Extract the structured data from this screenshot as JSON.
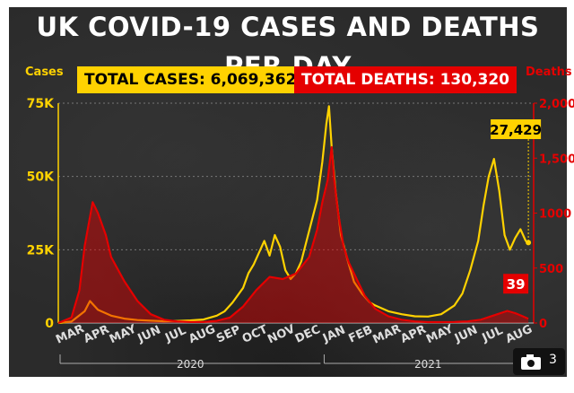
{
  "chart_data": {
    "type": "line",
    "title": "UK COVID-19 CASES AND DEATHS PER DAY",
    "y_left_label": "Cases",
    "y_right_label": "Deaths",
    "total_cases_label": "TOTAL CASES: 6,069,362",
    "total_deaths_label": "TOTAL DEATHS: 130,320",
    "left_ticks": [
      {
        "v": 0,
        "t": "0"
      },
      {
        "v": 25000,
        "t": "25K"
      },
      {
        "v": 50000,
        "t": "50K"
      },
      {
        "v": 75000,
        "t": "75K"
      }
    ],
    "right_ticks": [
      {
        "v": 0,
        "t": "0"
      },
      {
        "v": 500,
        "t": "500"
      },
      {
        "v": 1000,
        "t": "1000"
      },
      {
        "v": 1500,
        "t": "1,500"
      },
      {
        "v": 2000,
        "t": "2,000"
      }
    ],
    "ylim_left": [
      0,
      75000
    ],
    "ylim_right": [
      0,
      2000
    ],
    "grid": true,
    "months": [
      "MAR",
      "APR",
      "MAY",
      "JUN",
      "JUL",
      "AUG",
      "SEP",
      "OCT",
      "NOV",
      "DEC",
      "JAN",
      "FEB",
      "MAR",
      "APR",
      "MAY",
      "JUN",
      "JUL",
      "AUG"
    ],
    "years": [
      {
        "label": "2020",
        "from": 0,
        "to": 10
      },
      {
        "label": "2021",
        "from": 10,
        "to": 18
      }
    ],
    "annotations": {
      "cases_last": "27,429",
      "deaths_last": "39"
    },
    "series": [
      {
        "name": "Cases",
        "color": "#ffd200",
        "axis": "left",
        "points": [
          [
            0,
            0
          ],
          [
            0.5,
            500
          ],
          [
            1,
            4000
          ],
          [
            1.2,
            7500
          ],
          [
            1.5,
            4500
          ],
          [
            2,
            2500
          ],
          [
            2.5,
            1500
          ],
          [
            3,
            1000
          ],
          [
            3.5,
            800
          ],
          [
            4,
            600
          ],
          [
            4.5,
            700
          ],
          [
            5,
            900
          ],
          [
            5.5,
            1200
          ],
          [
            6,
            2500
          ],
          [
            6.3,
            4000
          ],
          [
            6.6,
            7000
          ],
          [
            7,
            12000
          ],
          [
            7.2,
            17000
          ],
          [
            7.4,
            20000
          ],
          [
            7.6,
            24000
          ],
          [
            7.8,
            28000
          ],
          [
            8,
            23000
          ],
          [
            8.2,
            30000
          ],
          [
            8.4,
            26000
          ],
          [
            8.6,
            18000
          ],
          [
            8.8,
            15000
          ],
          [
            9,
            17000
          ],
          [
            9.2,
            21000
          ],
          [
            9.4,
            28000
          ],
          [
            9.6,
            35000
          ],
          [
            9.8,
            42000
          ],
          [
            10,
            55000
          ],
          [
            10.15,
            68000
          ],
          [
            10.25,
            74000
          ],
          [
            10.35,
            60000
          ],
          [
            10.5,
            45000
          ],
          [
            10.7,
            30000
          ],
          [
            11,
            20000
          ],
          [
            11.2,
            14000
          ],
          [
            11.5,
            10000
          ],
          [
            11.8,
            7000
          ],
          [
            12,
            6000
          ],
          [
            12.5,
            4000
          ],
          [
            13,
            3000
          ],
          [
            13.5,
            2300
          ],
          [
            14,
            2200
          ],
          [
            14.5,
            3000
          ],
          [
            15,
            6000
          ],
          [
            15.3,
            10000
          ],
          [
            15.6,
            18000
          ],
          [
            15.9,
            28000
          ],
          [
            16.1,
            40000
          ],
          [
            16.3,
            50000
          ],
          [
            16.5,
            56000
          ],
          [
            16.7,
            45000
          ],
          [
            16.9,
            30000
          ],
          [
            17.1,
            25000
          ],
          [
            17.3,
            29000
          ],
          [
            17.5,
            32000
          ],
          [
            17.7,
            28000
          ],
          [
            17.8,
            27429
          ]
        ]
      },
      {
        "name": "Deaths",
        "color": "#e50000",
        "axis": "right",
        "points": [
          [
            0,
            0
          ],
          [
            0.5,
            50
          ],
          [
            0.8,
            300
          ],
          [
            1,
            700
          ],
          [
            1.3,
            1100
          ],
          [
            1.5,
            1000
          ],
          [
            1.8,
            800
          ],
          [
            2,
            600
          ],
          [
            2.5,
            380
          ],
          [
            3,
            200
          ],
          [
            3.5,
            80
          ],
          [
            4,
            30
          ],
          [
            4.5,
            15
          ],
          [
            5,
            10
          ],
          [
            5.5,
            10
          ],
          [
            6,
            20
          ],
          [
            6.5,
            50
          ],
          [
            7,
            150
          ],
          [
            7.5,
            300
          ],
          [
            8,
            420
          ],
          [
            8.5,
            400
          ],
          [
            9,
            450
          ],
          [
            9.5,
            600
          ],
          [
            9.8,
            850
          ],
          [
            10,
            1100
          ],
          [
            10.2,
            1300
          ],
          [
            10.35,
            1600
          ],
          [
            10.45,
            1300
          ],
          [
            10.6,
            1000
          ],
          [
            10.8,
            700
          ],
          [
            11,
            550
          ],
          [
            11.3,
            400
          ],
          [
            11.6,
            250
          ],
          [
            12,
            130
          ],
          [
            12.5,
            60
          ],
          [
            13,
            30
          ],
          [
            13.5,
            15
          ],
          [
            14,
            8
          ],
          [
            14.5,
            8
          ],
          [
            15,
            10
          ],
          [
            15.5,
            15
          ],
          [
            16,
            30
          ],
          [
            16.5,
            70
          ],
          [
            17,
            110
          ],
          [
            17.3,
            90
          ],
          [
            17.6,
            60
          ],
          [
            17.8,
            39
          ]
        ]
      }
    ]
  }
}
